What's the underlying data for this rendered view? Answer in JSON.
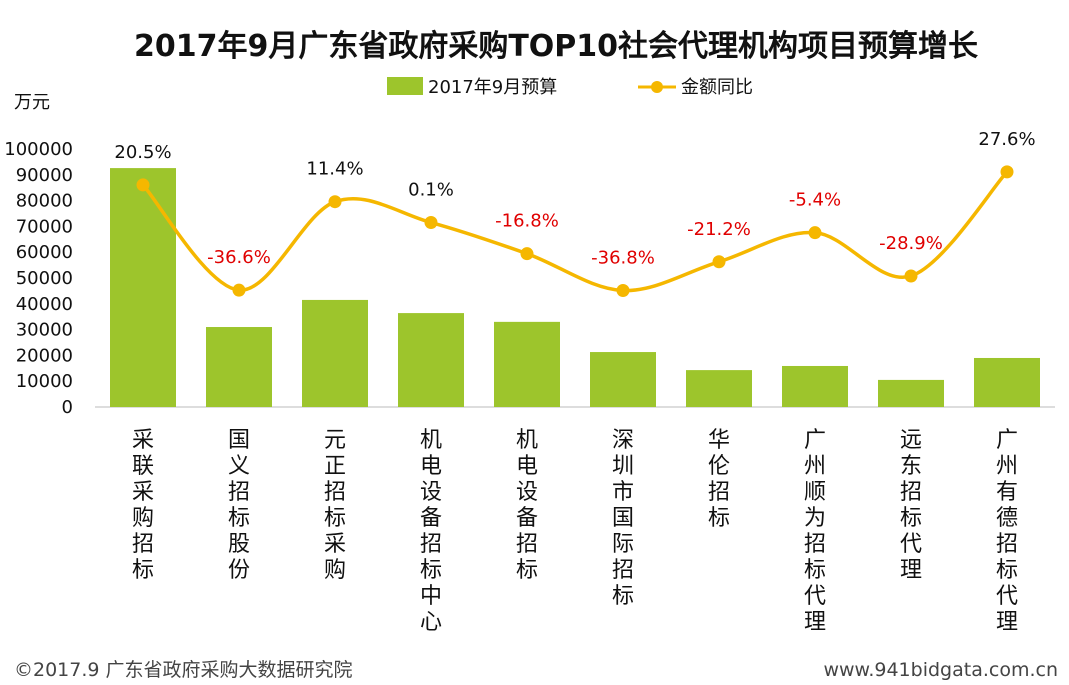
{
  "chart_data": {
    "type": "bar",
    "title": "2017年9月广东省政府采购TOP10社会代理机构项目预算增长",
    "ylabel": "万元",
    "ylim": [
      0,
      100000
    ],
    "yticks": [
      0,
      10000,
      20000,
      30000,
      40000,
      50000,
      60000,
      70000,
      80000,
      90000,
      100000
    ],
    "y2lim": [
      -100,
      40
    ],
    "categories": [
      "采联采购招标",
      "国义招标股份",
      "元正招标采购",
      "机电设备招标中心",
      "机电设备招标",
      "深圳市国际招标",
      "华伦招标",
      "广州顺为招标代理",
      "远东招标代理",
      "广州有德招标代理"
    ],
    "series": [
      {
        "name": "2017年9月预算",
        "type": "bar",
        "color": "#9dc52c",
        "values": [
          92600,
          31000,
          41500,
          36400,
          33000,
          21300,
          14300,
          15900,
          10500,
          19000
        ]
      },
      {
        "name": "金额同比",
        "type": "line",
        "color": "#f5b700",
        "axis": "secondary",
        "values": [
          20.5,
          -36.6,
          11.4,
          0.1,
          -16.8,
          -36.8,
          -21.2,
          -5.4,
          -28.9,
          27.6
        ],
        "labels": [
          "20.5%",
          "-36.6%",
          "11.4%",
          "0.1%",
          "-16.8%",
          "-36.8%",
          "-21.2%",
          "-5.4%",
          "-28.9%",
          "27.6%"
        ]
      }
    ],
    "legend": "top",
    "positive_label_color": "#111111",
    "negative_label_color": "#e00000"
  },
  "footer": {
    "left": "©2017.9 广东省政府采购大数据研究院",
    "right": "www.941bidgata.com.cn"
  }
}
